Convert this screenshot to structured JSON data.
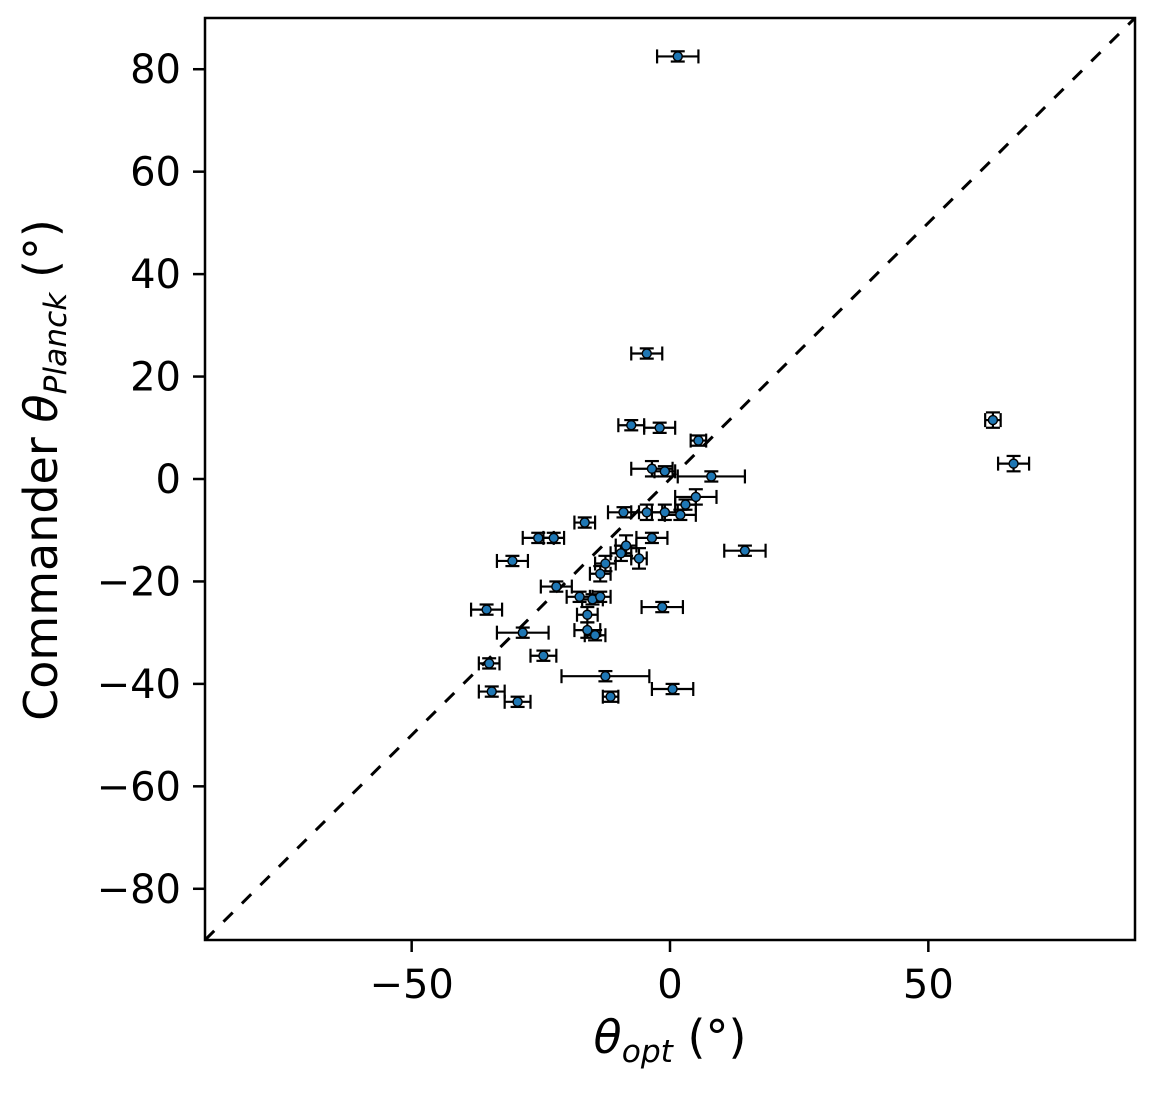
{
  "chart_data": {
    "type": "scatter",
    "title": "",
    "xlabel": {
      "symbol": "θ",
      "sub": "opt",
      "suffix": " (°)"
    },
    "ylabel": {
      "prefix": "Commander ",
      "symbol": "θ",
      "sub": "Planck",
      "suffix": " (°)"
    },
    "xlim": [
      -90,
      90
    ],
    "ylim": [
      -90,
      90
    ],
    "xticks": [
      -50,
      0,
      50
    ],
    "yticks": [
      -80,
      -60,
      -40,
      -20,
      0,
      20,
      40,
      60,
      80
    ],
    "grid": false,
    "legend": "none",
    "identity_line": {
      "style": "dashed",
      "color": "#000000",
      "description": "y = x reference line"
    },
    "marker": {
      "fill": "#1f77b4",
      "edge": "#000000"
    },
    "errorbar_color": "#000000",
    "points": [
      {
        "x": 1.5,
        "y": 82.5,
        "xerr": 4,
        "yerr": 1
      },
      {
        "x": -4.5,
        "y": 24.5,
        "xerr": 3,
        "yerr": 1
      },
      {
        "x": -7.5,
        "y": 10.5,
        "xerr": 2.5,
        "yerr": 1
      },
      {
        "x": -2,
        "y": 10,
        "xerr": 3,
        "yerr": 1
      },
      {
        "x": 5.5,
        "y": 7.5,
        "xerr": 1.5,
        "yerr": 1
      },
      {
        "x": -3.5,
        "y": 2,
        "xerr": 4,
        "yerr": 1.5
      },
      {
        "x": -1,
        "y": 1.5,
        "xerr": 2,
        "yerr": 1
      },
      {
        "x": 8,
        "y": 0.5,
        "xerr": 6.5,
        "yerr": 1
      },
      {
        "x": 5,
        "y": -3.5,
        "xerr": 4,
        "yerr": 1.5
      },
      {
        "x": 3,
        "y": -5,
        "xerr": 2,
        "yerr": 1
      },
      {
        "x": -9,
        "y": -6.5,
        "xerr": 3,
        "yerr": 1
      },
      {
        "x": -4.5,
        "y": -6.5,
        "xerr": 3,
        "yerr": 1.5
      },
      {
        "x": -1,
        "y": -6.5,
        "xerr": 2.5,
        "yerr": 1.5
      },
      {
        "x": 2,
        "y": -7,
        "xerr": 3,
        "yerr": 1
      },
      {
        "x": -16.5,
        "y": -8.5,
        "xerr": 2,
        "yerr": 1
      },
      {
        "x": -25.5,
        "y": -11.5,
        "xerr": 3,
        "yerr": 1
      },
      {
        "x": -22.5,
        "y": -11.5,
        "xerr": 2,
        "yerr": 1
      },
      {
        "x": -3.5,
        "y": -11.5,
        "xerr": 3,
        "yerr": 1
      },
      {
        "x": -8.5,
        "y": -13,
        "xerr": 2,
        "yerr": 2
      },
      {
        "x": -9.5,
        "y": -14.5,
        "xerr": 2,
        "yerr": 1.5
      },
      {
        "x": 14.5,
        "y": -14,
        "xerr": 4,
        "yerr": 1
      },
      {
        "x": -30.5,
        "y": -16,
        "xerr": 3,
        "yerr": 1
      },
      {
        "x": -12.5,
        "y": -16.5,
        "xerr": 2,
        "yerr": 1.5
      },
      {
        "x": -6,
        "y": -15.5,
        "xerr": 1.5,
        "yerr": 2
      },
      {
        "x": -13.5,
        "y": -18.5,
        "xerr": 2,
        "yerr": 1.5
      },
      {
        "x": -22,
        "y": -21,
        "xerr": 3,
        "yerr": 1
      },
      {
        "x": -17.5,
        "y": -23,
        "xerr": 2.5,
        "yerr": 1
      },
      {
        "x": -15,
        "y": -23.5,
        "xerr": 2,
        "yerr": 1
      },
      {
        "x": -13.5,
        "y": -23,
        "xerr": 2,
        "yerr": 1
      },
      {
        "x": -1.5,
        "y": -25,
        "xerr": 4,
        "yerr": 1
      },
      {
        "x": -35.5,
        "y": -25.5,
        "xerr": 3,
        "yerr": 1
      },
      {
        "x": -16,
        "y": -26.5,
        "xerr": 2,
        "yerr": 1.5
      },
      {
        "x": -28.5,
        "y": -30,
        "xerr": 5,
        "yerr": 1
      },
      {
        "x": -16,
        "y": -29.5,
        "xerr": 2.5,
        "yerr": 1.5
      },
      {
        "x": -14.5,
        "y": -30.5,
        "xerr": 2,
        "yerr": 1
      },
      {
        "x": -35,
        "y": -36,
        "xerr": 2,
        "yerr": 1
      },
      {
        "x": -24.5,
        "y": -34.5,
        "xerr": 2.5,
        "yerr": 1
      },
      {
        "x": -12.5,
        "y": -38.5,
        "xerr": 8.5,
        "yerr": 1
      },
      {
        "x": 0.5,
        "y": -41,
        "xerr": 4,
        "yerr": 1
      },
      {
        "x": -34.5,
        "y": -41.5,
        "xerr": 2.5,
        "yerr": 1
      },
      {
        "x": -29.5,
        "y": -43.5,
        "xerr": 2.5,
        "yerr": 1
      },
      {
        "x": -11.5,
        "y": -42.5,
        "xerr": 1.5,
        "yerr": 1
      },
      {
        "x": 62.5,
        "y": 11.5,
        "xerr": 1.5,
        "yerr": 1.5
      },
      {
        "x": 66.5,
        "y": 3,
        "xerr": 3,
        "yerr": 1.5
      }
    ]
  }
}
